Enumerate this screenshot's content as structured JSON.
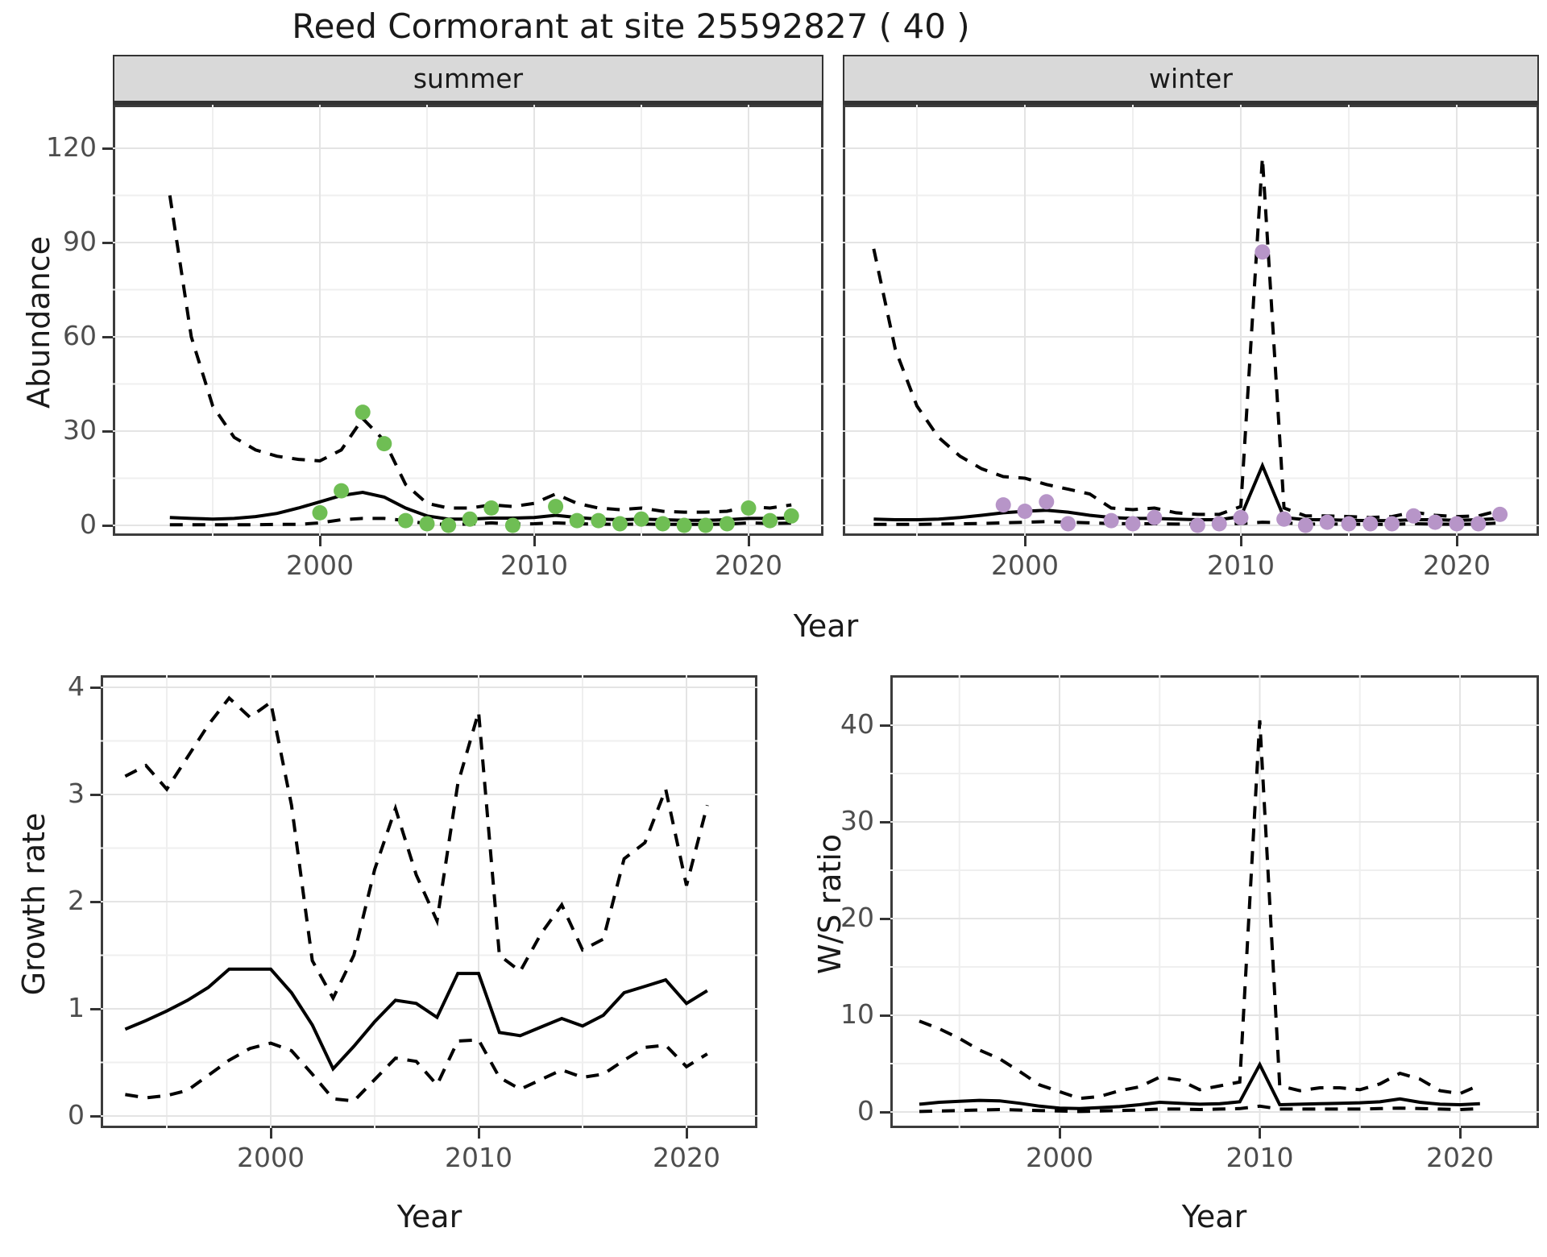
{
  "title": "Reed Cormorant at site 25592827 ( 40 )",
  "labels": {
    "abundance_ylab": "Abundance",
    "growth_ylab": "Growth rate",
    "ws_ylab": "W/S ratio",
    "year_xlab": "Year",
    "facet_summer": "summer",
    "facet_winter": "winter"
  },
  "colors": {
    "summer_point": "#6FBE54",
    "winter_point": "#B795C8",
    "line": "#000000",
    "strip_bg": "#D9D9D9",
    "grid_major": "#E4E4E4",
    "grid_minor": "#EFEFEF",
    "axis_text": "#4D4D4D",
    "panel_border": "#3C3C3C"
  },
  "chart_data": [
    {
      "type": "line",
      "panel": "abundance_summer",
      "facet": "summer",
      "xlabel": "Year",
      "ylabel": "Abundance",
      "x": [
        1993,
        1994,
        1995,
        1996,
        1997,
        1998,
        1999,
        2000,
        2001,
        2002,
        2003,
        2004,
        2005,
        2006,
        2007,
        2008,
        2009,
        2010,
        2011,
        2012,
        2013,
        2014,
        2015,
        2016,
        2017,
        2018,
        2019,
        2020,
        2021,
        2022
      ],
      "series": [
        {
          "name": "fit",
          "style": "solid",
          "values": [
            2.5,
            2.2,
            2.0,
            2.2,
            2.8,
            3.8,
            5.5,
            7.5,
            9.5,
            10.5,
            9.0,
            5.5,
            3.0,
            2.0,
            2.0,
            2.3,
            2.3,
            2.5,
            3.2,
            2.5,
            2.0,
            1.8,
            2.0,
            1.8,
            1.6,
            1.6,
            1.8,
            2.2,
            2.2,
            2.3
          ]
        },
        {
          "name": "upper_ci",
          "style": "dashed",
          "values": [
            105,
            60,
            38,
            28,
            24,
            22,
            21,
            20.5,
            24,
            34,
            27,
            13,
            7,
            5.5,
            5.5,
            6.5,
            6,
            7,
            10,
            7,
            5.5,
            5,
            5.5,
            4.5,
            4.2,
            4.2,
            4.5,
            6,
            5.5,
            6.5
          ]
        },
        {
          "name": "lower_ci",
          "style": "dashed",
          "values": [
            0.2,
            0.2,
            0.2,
            0.2,
            0.2,
            0.3,
            0.3,
            0.8,
            1.8,
            2.2,
            2.2,
            1.5,
            0.5,
            0.3,
            0.4,
            0.8,
            0.4,
            0.5,
            0.8,
            0.5,
            0.4,
            0.3,
            0.4,
            0.3,
            0.3,
            0.3,
            0.4,
            0.8,
            0.6,
            0.7
          ]
        }
      ],
      "points": {
        "name": "observed_counts",
        "color_key": "summer_point",
        "x": [
          2000,
          2001,
          2002,
          2003,
          2004,
          2005,
          2006,
          2007,
          2008,
          2009,
          2011,
          2012,
          2013,
          2014,
          2015,
          2016,
          2017,
          2018,
          2019,
          2020,
          2021,
          2022
        ],
        "y": [
          4,
          11,
          36,
          26,
          1.5,
          0.5,
          0,
          2,
          5.5,
          0,
          6,
          1.5,
          1.5,
          0.5,
          2,
          0.5,
          0,
          0,
          0.5,
          5.5,
          1.5,
          3
        ]
      },
      "axes": {
        "xticks": [
          2000,
          2010,
          2020
        ],
        "x_minor": [
          1995,
          2005,
          2015
        ],
        "yticks": [
          0,
          30,
          60,
          90,
          120
        ],
        "y_minor": [
          15,
          45,
          75,
          105
        ],
        "xlim": [
          1990.3,
          2023.5
        ],
        "ylim": [
          -4,
          134
        ]
      }
    },
    {
      "type": "line",
      "panel": "abundance_winter",
      "facet": "winter",
      "xlabel": "Year",
      "ylabel": "Abundance",
      "x": [
        1993,
        1994,
        1995,
        1996,
        1997,
        1998,
        1999,
        2000,
        2001,
        2002,
        2003,
        2004,
        2005,
        2006,
        2007,
        2008,
        2009,
        2010,
        2011,
        2012,
        2013,
        2014,
        2015,
        2016,
        2017,
        2018,
        2019,
        2020,
        2021,
        2022
      ],
      "series": [
        {
          "name": "fit",
          "style": "solid",
          "values": [
            2.0,
            1.8,
            1.8,
            2.0,
            2.5,
            3.2,
            4.0,
            4.5,
            4.8,
            4.2,
            3.2,
            2.5,
            2.2,
            2.2,
            2.0,
            1.8,
            1.8,
            2.8,
            19,
            2.5,
            1.8,
            1.8,
            1.6,
            1.5,
            1.5,
            1.8,
            1.8,
            1.6,
            1.8,
            2.2
          ]
        },
        {
          "name": "upper_ci",
          "style": "dashed",
          "values": [
            88,
            56,
            38,
            28,
            22,
            18,
            15.5,
            15,
            13,
            11.5,
            10,
            5.5,
            5,
            5.5,
            4,
            3.5,
            3.5,
            6,
            117,
            5.5,
            3,
            3,
            2.8,
            2.5,
            2.8,
            4.2,
            3.2,
            2.8,
            3,
            4.8
          ]
        },
        {
          "name": "lower_ci",
          "style": "dashed",
          "values": [
            0.3,
            0.3,
            0.3,
            0.4,
            0.5,
            0.6,
            0.8,
            1.0,
            1.2,
            1.0,
            0.8,
            0.6,
            0.5,
            0.5,
            0.4,
            0.4,
            0.4,
            0.6,
            1.0,
            0.8,
            0.4,
            0.4,
            0.4,
            0.3,
            0.3,
            0.5,
            0.4,
            0.3,
            0.4,
            0.8
          ]
        }
      ],
      "points": {
        "name": "observed_counts",
        "color_key": "winter_point",
        "x": [
          1999,
          2000,
          2001,
          2002,
          2004,
          2005,
          2006,
          2008,
          2009,
          2010,
          2011,
          2012,
          2013,
          2014,
          2015,
          2016,
          2017,
          2018,
          2019,
          2020,
          2021,
          2022
        ],
        "y": [
          6.5,
          4.5,
          7.5,
          0.5,
          1.5,
          0.5,
          2.5,
          0,
          0.5,
          2.5,
          87,
          2,
          0,
          1,
          0.5,
          0.5,
          0.5,
          3,
          1,
          0.5,
          0.5,
          3.5
        ]
      },
      "axes": {
        "xticks": [
          2000,
          2010,
          2020
        ],
        "x_minor": [
          1995,
          2005,
          2015
        ],
        "yticks": [
          0,
          30,
          60,
          90,
          120
        ],
        "y_minor": [
          15,
          45,
          75,
          105
        ],
        "xlim": [
          1991.6,
          2023.8
        ],
        "ylim": [
          -4,
          134
        ]
      }
    },
    {
      "type": "line",
      "panel": "growth_rate",
      "facet": "",
      "xlabel": "Year",
      "ylabel": "Growth rate",
      "x": [
        1993,
        1994,
        1995,
        1996,
        1997,
        1998,
        1999,
        2000,
        2001,
        2002,
        2003,
        2004,
        2005,
        2006,
        2007,
        2008,
        2009,
        2010,
        2011,
        2012,
        2013,
        2014,
        2015,
        2016,
        2017,
        2018,
        2019,
        2020,
        2021
      ],
      "series": [
        {
          "name": "fit",
          "style": "solid",
          "values": [
            0.81,
            0.89,
            0.98,
            1.08,
            1.2,
            1.37,
            1.37,
            1.37,
            1.15,
            0.85,
            0.44,
            0.65,
            0.88,
            1.08,
            1.05,
            0.92,
            1.33,
            1.33,
            0.78,
            0.75,
            0.83,
            0.91,
            0.84,
            0.94,
            1.15,
            1.21,
            1.27,
            1.05,
            1.17
          ]
        },
        {
          "name": "upper_ci",
          "style": "dashed",
          "values": [
            3.17,
            3.27,
            3.05,
            3.35,
            3.65,
            3.9,
            3.72,
            3.86,
            2.9,
            1.45,
            1.1,
            1.5,
            2.3,
            2.87,
            2.25,
            1.82,
            3.1,
            3.77,
            1.5,
            1.35,
            1.7,
            1.97,
            1.55,
            1.65,
            2.4,
            2.55,
            3.05,
            2.15,
            2.9
          ]
        },
        {
          "name": "lower_ci",
          "style": "dashed",
          "values": [
            0.2,
            0.17,
            0.19,
            0.24,
            0.38,
            0.52,
            0.63,
            0.68,
            0.61,
            0.39,
            0.16,
            0.14,
            0.34,
            0.54,
            0.51,
            0.29,
            0.7,
            0.71,
            0.36,
            0.25,
            0.34,
            0.43,
            0.36,
            0.39,
            0.52,
            0.64,
            0.66,
            0.46,
            0.58
          ]
        }
      ],
      "points": null,
      "axes": {
        "xticks": [
          2000,
          2010,
          2020
        ],
        "x_minor": [
          1995,
          2005,
          2015
        ],
        "yticks": [
          0,
          1,
          2,
          3,
          4
        ],
        "y_minor": [
          0.5,
          1.5,
          2.5,
          3.5
        ],
        "xlim": [
          1991.8,
          2023.4
        ],
        "ylim": [
          -0.11,
          4.11
        ]
      }
    },
    {
      "type": "line",
      "panel": "ws_ratio",
      "facet": "",
      "xlabel": "Year",
      "ylabel": "W/S ratio",
      "x": [
        1993,
        1994,
        1995,
        1996,
        1997,
        1998,
        1999,
        2000,
        2001,
        2002,
        2003,
        2004,
        2005,
        2006,
        2007,
        2008,
        2009,
        2010,
        2011,
        2012,
        2013,
        2014,
        2015,
        2016,
        2017,
        2018,
        2019,
        2020,
        2021
      ],
      "series": [
        {
          "name": "fit",
          "style": "solid",
          "values": [
            0.8,
            1.0,
            1.1,
            1.2,
            1.15,
            0.9,
            0.6,
            0.4,
            0.35,
            0.45,
            0.55,
            0.75,
            1.0,
            0.9,
            0.8,
            0.85,
            1.05,
            4.9,
            0.75,
            0.8,
            0.85,
            0.9,
            0.95,
            1.05,
            1.35,
            1.0,
            0.8,
            0.75,
            0.85
          ]
        },
        {
          "name": "upper_ci",
          "style": "dashed",
          "values": [
            9.4,
            8.6,
            7.6,
            6.4,
            5.5,
            4.2,
            2.8,
            2.1,
            1.4,
            1.6,
            2.2,
            2.6,
            3.6,
            3.3,
            2.3,
            2.7,
            3.1,
            40.5,
            2.7,
            2.2,
            2.5,
            2.5,
            2.3,
            2.9,
            4.0,
            3.4,
            2.2,
            1.9,
            2.8
          ]
        },
        {
          "name": "lower_ci",
          "style": "dashed",
          "values": [
            0.05,
            0.1,
            0.15,
            0.2,
            0.25,
            0.2,
            0.15,
            0.1,
            0.05,
            0.1,
            0.15,
            0.2,
            0.3,
            0.3,
            0.25,
            0.3,
            0.35,
            0.6,
            0.3,
            0.3,
            0.3,
            0.3,
            0.3,
            0.35,
            0.4,
            0.35,
            0.3,
            0.25,
            0.35
          ]
        }
      ],
      "points": null,
      "axes": {
        "xticks": [
          2000,
          2010,
          2020
        ],
        "x_minor": [
          1995,
          2005,
          2015
        ],
        "yticks": [
          0,
          10,
          20,
          30,
          40
        ],
        "y_minor": [
          5,
          15,
          25,
          35
        ],
        "xlim": [
          1991.6,
          2023.9
        ],
        "ylim": [
          -1.7,
          45.2
        ]
      }
    }
  ]
}
